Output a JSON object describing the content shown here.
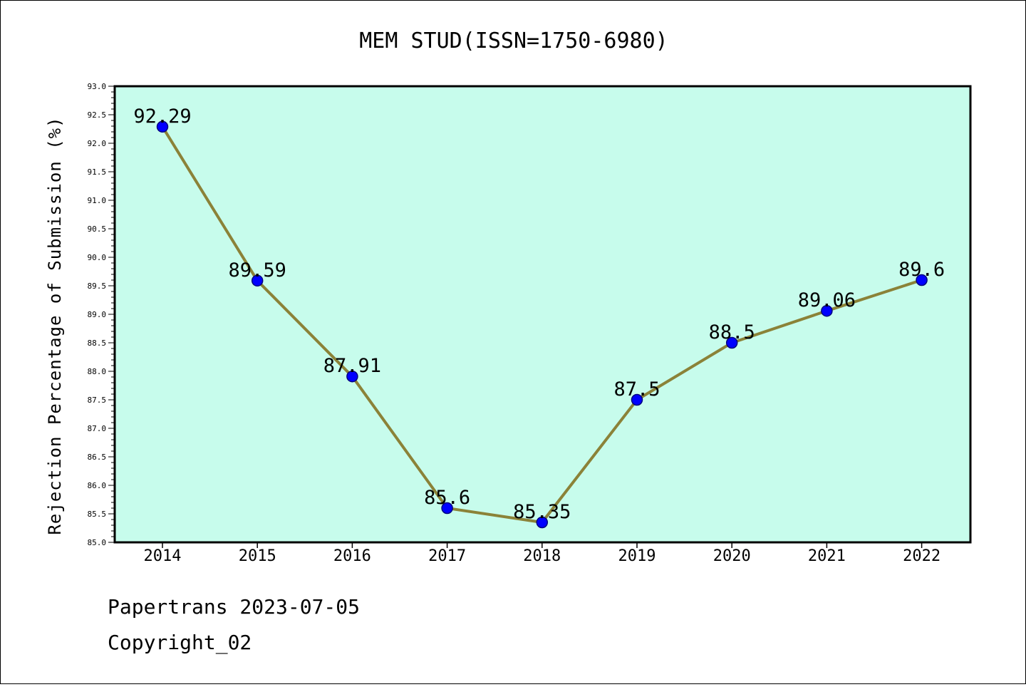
{
  "chart_data": {
    "type": "line",
    "title": "MEM STUD(ISSN=1750-6980)",
    "xlabel": "",
    "ylabel": "Rejection Percentage of Submission (%)",
    "categories": [
      "2014",
      "2015",
      "2016",
      "2017",
      "2018",
      "2019",
      "2020",
      "2021",
      "2022"
    ],
    "series": [
      {
        "values": [
          92.29,
          89.59,
          87.91,
          85.6,
          85.35,
          87.5,
          88.5,
          89.06,
          89.6
        ]
      }
    ],
    "data_labels": [
      "92.29",
      "89.59",
      "87.91",
      "85.6",
      "85.35",
      "87.5",
      "88.5",
      "89.06",
      "89.6"
    ],
    "ylim": [
      85.0,
      93.0
    ],
    "yticks": [
      "85.0",
      "85.5",
      "86.0",
      "86.5",
      "87.0",
      "87.5",
      "88.0",
      "88.5",
      "89.0",
      "89.5",
      "90.0",
      "90.5",
      "91.0",
      "91.5",
      "92.0",
      "92.5",
      "93.0"
    ],
    "grid": false,
    "colors": {
      "plot_background": "#c7fcec",
      "line": "#8b8238",
      "marker_fill": "#0000ff",
      "marker_edge": "#000080"
    }
  },
  "footer": {
    "line1": "Papertrans 2023-07-05",
    "line2": "Copyright_02"
  }
}
